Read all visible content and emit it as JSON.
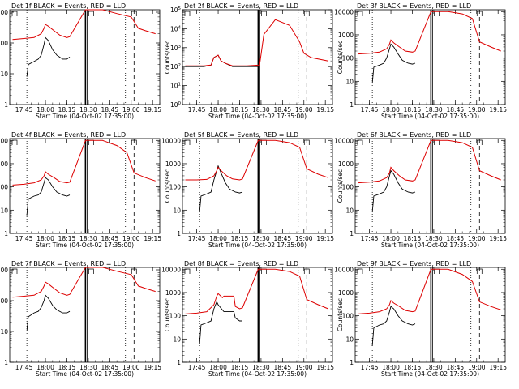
{
  "chart_data": [
    {
      "type": "line",
      "title": "Det 1f BLACK = Events, RED = LLD",
      "xlabel": "Start Time (04-Oct-02 17:35:00)",
      "ylabel": "Counts/sec",
      "ytick_labels": [
        "1",
        "10",
        "100",
        "1000"
      ],
      "ylim": [
        1,
        1200
      ],
      "xtick_labels": [
        "17:45",
        "18:00",
        "18:15",
        "18:30",
        "18:45",
        "19:00",
        "19:15"
      ],
      "xlim": [
        "17:35",
        "19:20"
      ],
      "yscale": "log",
      "series": [
        {
          "name": "Events",
          "color": "#000000",
          "x": [
            "17:47",
            "17:48",
            "17:52",
            "17:55",
            "17:57",
            "17:59",
            "18:00",
            "18:02",
            "18:05",
            "18:08",
            "18:12",
            "18:15",
            "18:17"
          ],
          "y": [
            8,
            20,
            25,
            30,
            40,
            90,
            150,
            120,
            60,
            40,
            30,
            30,
            35
          ]
        },
        {
          "name": "LLD",
          "color": "#dd0000",
          "x": [
            "17:37",
            "17:45",
            "17:52",
            "17:57",
            "17:59",
            "18:00",
            "18:02",
            "18:06",
            "18:10",
            "18:15",
            "18:17",
            "18:28",
            "18:40",
            "18:50",
            "19:00",
            "19:05",
            "19:10",
            "19:17"
          ],
          "y": [
            130,
            140,
            150,
            200,
            300,
            400,
            350,
            250,
            180,
            150,
            160,
            1200,
            1200,
            900,
            700,
            300,
            250,
            200
          ]
        }
      ]
    },
    {
      "type": "line",
      "title": "Det 2f BLACK = Events, RED = LLD",
      "xlabel": "Start Time (04-Oct-02 17:35:00)",
      "ylabel": "Counts/sec",
      "ytick_labels": [
        "10^0",
        "10^1",
        "10^2",
        "10^3",
        "10^4",
        "10^5"
      ],
      "ylim": [
        1,
        100000
      ],
      "xtick_labels": [
        "17:45",
        "18:00",
        "18:15",
        "18:30",
        "18:45",
        "19:00",
        "19:15"
      ],
      "xlim": [
        "17:35",
        "19:20"
      ],
      "yscale": "log",
      "series": [
        {
          "name": "Events",
          "color": "#000000",
          "x": [
            "17:37",
            "17:50",
            "17:55",
            "17:57",
            "18:00",
            "18:02",
            "18:05",
            "18:10",
            "18:20",
            "18:29"
          ],
          "y": [
            100,
            100,
            120,
            300,
            400,
            200,
            150,
            100,
            100,
            100
          ]
        },
        {
          "name": "LLD",
          "color": "#dd0000",
          "x": [
            "17:37",
            "17:50",
            "17:55",
            "17:57",
            "18:00",
            "18:02",
            "18:05",
            "18:10",
            "18:20",
            "18:29",
            "18:32",
            "18:40",
            "18:50",
            "18:57",
            "19:00",
            "19:05",
            "19:17"
          ],
          "y": [
            110,
            110,
            120,
            300,
            400,
            200,
            150,
            110,
            110,
            120,
            5000,
            30000,
            15000,
            2000,
            500,
            300,
            200
          ]
        }
      ]
    },
    {
      "type": "line",
      "title": "Det 3f BLACK = Events, RED = LLD",
      "xlabel": "Start Time (04-Oct-02 17:35:00)",
      "ylabel": "Counts/sec",
      "ytick_labels": [
        "1",
        "10",
        "100",
        "1000",
        "10000"
      ],
      "ylim": [
        1,
        12000
      ],
      "xtick_labels": [
        "17:45",
        "18:00",
        "18:15",
        "18:30",
        "18:45",
        "19:00",
        "19:15"
      ],
      "xlim": [
        "17:35",
        "19:20"
      ],
      "yscale": "log",
      "series": [
        {
          "name": "Events",
          "color": "#000000",
          "x": [
            "17:47",
            "17:48",
            "17:52",
            "17:55",
            "17:57",
            "17:59",
            "18:00",
            "18:02",
            "18:05",
            "18:08",
            "18:12",
            "18:15",
            "18:17"
          ],
          "y": [
            8,
            40,
            50,
            60,
            100,
            250,
            400,
            300,
            150,
            80,
            60,
            55,
            60
          ]
        },
        {
          "name": "LLD",
          "color": "#dd0000",
          "x": [
            "17:37",
            "17:45",
            "17:52",
            "17:57",
            "17:59",
            "18:00",
            "18:02",
            "18:06",
            "18:10",
            "18:15",
            "18:17",
            "18:28",
            "18:40",
            "18:50",
            "18:57",
            "19:02",
            "19:10",
            "19:17"
          ],
          "y": [
            150,
            160,
            180,
            250,
            400,
            600,
            450,
            300,
            200,
            180,
            200,
            10000,
            10000,
            8000,
            5000,
            500,
            300,
            200
          ]
        }
      ]
    },
    {
      "type": "line",
      "title": "Det 4f BLACK = Events, RED = LLD",
      "xlabel": "Start Time (04-Oct-02 17:35:00)",
      "ylabel": "Counts/sec",
      "ytick_labels": [
        "1",
        "10",
        "100",
        "1000",
        "10000"
      ],
      "ylim": [
        1,
        12000
      ],
      "xtick_labels": [
        "17:45",
        "18:00",
        "18:15",
        "18:30",
        "18:45",
        "19:00",
        "19:15"
      ],
      "xlim": [
        "17:35",
        "19:20"
      ],
      "yscale": "log",
      "series": [
        {
          "name": "Events",
          "color": "#000000",
          "x": [
            "17:47",
            "17:48",
            "17:52",
            "17:55",
            "17:57",
            "17:59",
            "18:00",
            "18:02",
            "18:05",
            "18:08",
            "18:12",
            "18:15",
            "18:17"
          ],
          "y": [
            6,
            30,
            40,
            45,
            60,
            150,
            250,
            200,
            100,
            60,
            45,
            40,
            45
          ]
        },
        {
          "name": "LLD",
          "color": "#dd0000",
          "x": [
            "17:37",
            "17:45",
            "17:52",
            "17:57",
            "17:59",
            "18:00",
            "18:02",
            "18:06",
            "18:10",
            "18:15",
            "18:17",
            "18:28",
            "18:40",
            "18:50",
            "18:57",
            "19:02",
            "19:10",
            "19:17"
          ],
          "y": [
            120,
            130,
            150,
            200,
            300,
            450,
            350,
            250,
            170,
            150,
            160,
            10000,
            10000,
            6000,
            3000,
            400,
            250,
            180
          ]
        }
      ]
    },
    {
      "type": "line",
      "title": "Det 5f BLACK = Events, RED = LLD",
      "xlabel": "Start Time (04-Oct-02 17:35:00)",
      "ylabel": "Counts/sec",
      "ytick_labels": [
        "1",
        "10",
        "100",
        "1000",
        "10000"
      ],
      "ylim": [
        1,
        12000
      ],
      "xtick_labels": [
        "17:45",
        "18:00",
        "18:15",
        "18:30",
        "18:45",
        "19:00",
        "19:15"
      ],
      "xlim": [
        "17:35",
        "19:20"
      ],
      "yscale": "log",
      "series": [
        {
          "name": "Events",
          "color": "#000000",
          "x": [
            "17:47",
            "17:48",
            "17:52",
            "17:55",
            "17:57",
            "17:59",
            "18:00",
            "18:02",
            "18:05",
            "18:08",
            "18:12",
            "18:15",
            "18:17"
          ],
          "y": [
            8,
            40,
            50,
            60,
            200,
            500,
            800,
            400,
            150,
            80,
            60,
            55,
            60
          ]
        },
        {
          "name": "LLD",
          "color": "#dd0000",
          "x": [
            "17:37",
            "17:45",
            "17:52",
            "17:57",
            "17:59",
            "18:00",
            "18:02",
            "18:06",
            "18:10",
            "18:15",
            "18:17",
            "18:28",
            "18:40",
            "18:50",
            "18:57",
            "19:02",
            "19:10",
            "19:17"
          ],
          "y": [
            200,
            200,
            210,
            300,
            500,
            700,
            500,
            300,
            220,
            200,
            220,
            10000,
            10000,
            8000,
            5000,
            600,
            350,
            250
          ]
        }
      ]
    },
    {
      "type": "line",
      "title": "Det 6f BLACK = Events, RED = LLD",
      "xlabel": "Start Time (04-Oct-02 17:35:00)",
      "ylabel": "Counts/sec",
      "ytick_labels": [
        "1",
        "10",
        "100",
        "1000",
        "10000"
      ],
      "ylim": [
        1,
        12000
      ],
      "xtick_labels": [
        "17:45",
        "18:00",
        "18:15",
        "18:30",
        "18:45",
        "19:00",
        "19:15"
      ],
      "xlim": [
        "17:35",
        "19:20"
      ],
      "yscale": "log",
      "series": [
        {
          "name": "Events",
          "color": "#000000",
          "x": [
            "17:47",
            "17:48",
            "17:52",
            "17:55",
            "17:57",
            "17:59",
            "18:00",
            "18:02",
            "18:05",
            "18:08",
            "18:12",
            "18:15",
            "18:17"
          ],
          "y": [
            8,
            40,
            50,
            60,
            100,
            300,
            500,
            350,
            150,
            80,
            60,
            55,
            60
          ]
        },
        {
          "name": "LLD",
          "color": "#dd0000",
          "x": [
            "17:37",
            "17:45",
            "17:52",
            "17:57",
            "17:59",
            "18:00",
            "18:02",
            "18:06",
            "18:10",
            "18:15",
            "18:17",
            "18:28",
            "18:40",
            "18:50",
            "18:57",
            "19:02",
            "19:10",
            "19:17"
          ],
          "y": [
            150,
            160,
            180,
            250,
            400,
            700,
            500,
            300,
            200,
            180,
            200,
            10000,
            10000,
            8000,
            5000,
            500,
            300,
            200
          ]
        }
      ]
    },
    {
      "type": "line",
      "title": "Det 7f BLACK = Events, RED = LLD",
      "xlabel": "Start Time (04-Oct-02 17:35:00)",
      "ylabel": "Counts/sec",
      "ytick_labels": [
        "1",
        "10",
        "100",
        "1000"
      ],
      "ylim": [
        1,
        1200
      ],
      "xtick_labels": [
        "17:45",
        "18:00",
        "18:15",
        "18:30",
        "18:45",
        "19:00",
        "19:15"
      ],
      "xlim": [
        "17:35",
        "19:20"
      ],
      "yscale": "log",
      "series": [
        {
          "name": "Events",
          "color": "#000000",
          "x": [
            "17:47",
            "17:48",
            "17:52",
            "17:55",
            "17:57",
            "17:59",
            "18:00",
            "18:02",
            "18:05",
            "18:08",
            "18:12",
            "18:15",
            "18:17"
          ],
          "y": [
            10,
            30,
            40,
            45,
            60,
            100,
            150,
            120,
            70,
            50,
            40,
            40,
            45
          ]
        },
        {
          "name": "LLD",
          "color": "#dd0000",
          "x": [
            "17:37",
            "17:45",
            "17:52",
            "17:57",
            "17:59",
            "18:00",
            "18:02",
            "18:06",
            "18:10",
            "18:15",
            "18:17",
            "18:28",
            "18:40",
            "18:50",
            "19:00",
            "19:05",
            "19:10",
            "19:17"
          ],
          "y": [
            130,
            140,
            150,
            200,
            300,
            400,
            350,
            250,
            180,
            150,
            160,
            1200,
            1200,
            900,
            700,
            300,
            250,
            200
          ]
        }
      ]
    },
    {
      "type": "line",
      "title": "Det 8f BLACK = Events, RED = LLD",
      "xlabel": "Start Time (04-Oct-02 17:35:00)",
      "ylabel": "Counts/sec",
      "ytick_labels": [
        "1",
        "10",
        "100",
        "1000",
        "10000"
      ],
      "ylim": [
        1,
        12000
      ],
      "xtick_labels": [
        "17:45",
        "18:00",
        "18:15",
        "18:30",
        "18:45",
        "19:00",
        "19:15"
      ],
      "xlim": [
        "17:35",
        "19:20"
      ],
      "yscale": "log",
      "series": [
        {
          "name": "Events",
          "color": "#000000",
          "x": [
            "17:47",
            "17:48",
            "17:52",
            "17:55",
            "17:57",
            "17:59",
            "18:00",
            "18:04",
            "18:05",
            "18:11",
            "18:12",
            "18:15",
            "18:17"
          ],
          "y": [
            6,
            40,
            50,
            60,
            200,
            400,
            300,
            150,
            150,
            150,
            80,
            60,
            60
          ]
        },
        {
          "name": "LLD",
          "color": "#dd0000",
          "x": [
            "17:37",
            "17:45",
            "17:52",
            "17:57",
            "17:59",
            "18:00",
            "18:03",
            "18:04",
            "18:11",
            "18:12",
            "18:15",
            "18:17",
            "18:28",
            "18:40",
            "18:50",
            "18:57",
            "19:02",
            "19:10",
            "19:17"
          ],
          "y": [
            120,
            130,
            150,
            300,
            700,
            900,
            600,
            700,
            700,
            250,
            200,
            220,
            10000,
            10000,
            8000,
            5000,
            500,
            300,
            200
          ]
        }
      ]
    },
    {
      "type": "line",
      "title": "Det 9f BLACK = Events, RED = LLD",
      "xlabel": "Start Time (04-Oct-02 17:35:00)",
      "ylabel": "Counts/sec",
      "ytick_labels": [
        "1",
        "10",
        "100",
        "1000",
        "10000"
      ],
      "ylim": [
        1,
        12000
      ],
      "xtick_labels": [
        "17:45",
        "18:00",
        "18:15",
        "18:30",
        "18:45",
        "19:00",
        "19:15"
      ],
      "xlim": [
        "17:35",
        "19:20"
      ],
      "yscale": "log",
      "series": [
        {
          "name": "Events",
          "color": "#000000",
          "x": [
            "17:47",
            "17:48",
            "17:52",
            "17:55",
            "17:57",
            "17:59",
            "18:00",
            "18:02",
            "18:05",
            "18:08",
            "18:12",
            "18:15",
            "18:17"
          ],
          "y": [
            5,
            30,
            40,
            45,
            60,
            150,
            250,
            200,
            100,
            60,
            45,
            40,
            45
          ]
        },
        {
          "name": "LLD",
          "color": "#dd0000",
          "x": [
            "17:37",
            "17:45",
            "17:52",
            "17:57",
            "17:59",
            "18:00",
            "18:02",
            "18:06",
            "18:10",
            "18:15",
            "18:17",
            "18:28",
            "18:40",
            "18:50",
            "18:57",
            "19:02",
            "19:10",
            "19:17"
          ],
          "y": [
            120,
            130,
            150,
            200,
            300,
            450,
            350,
            250,
            170,
            150,
            160,
            10000,
            10000,
            6000,
            3000,
            400,
            250,
            180
          ]
        }
      ]
    }
  ]
}
